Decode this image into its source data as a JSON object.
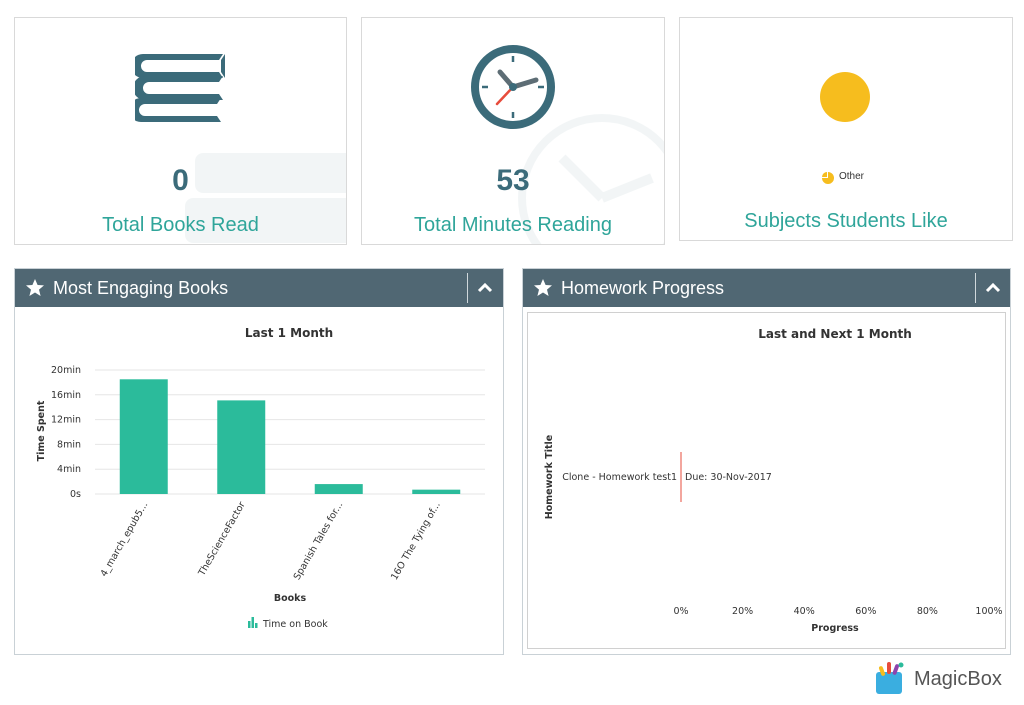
{
  "stats": [
    {
      "value": "0",
      "label": "Total Books Read",
      "icon": "books-icon"
    },
    {
      "value": "53",
      "label": "Total Minutes Reading",
      "icon": "clock-icon"
    }
  ],
  "subjects": {
    "label": "Subjects Students Like",
    "legend": "Other",
    "pie_color": "#f6bd1e"
  },
  "engaging": {
    "title": "Most Engaging Books",
    "chart_data": {
      "type": "bar",
      "title": "Last 1 Month",
      "xlabel": "Books",
      "ylabel": "Time Spent",
      "categories": [
        "4_march_epub5...",
        "TheScienceFactor",
        "Spanish Tales for...",
        "16O The Tying of..."
      ],
      "series": [
        {
          "name": "Time on Book",
          "values": [
            18.5,
            15.1,
            1.6,
            0.7
          ]
        }
      ],
      "ylim": [
        0,
        20
      ],
      "yticks": [
        "0s",
        "4min",
        "8min",
        "12min",
        "16min",
        "20min"
      ],
      "ytick_values": [
        0,
        4,
        8,
        12,
        16,
        20
      ],
      "bar_color": "#2bbb9b",
      "grid": true,
      "legend": "bottom"
    }
  },
  "homework": {
    "title": "Homework Progress",
    "chart_data": {
      "type": "bar",
      "title": "Last and Next 1 Month",
      "xlabel": "Progress",
      "ylabel": "Homework Title",
      "categories": [
        "Clone - Homework test1"
      ],
      "values": [
        0
      ],
      "annotations": [
        "Due: 30-Nov-2017"
      ],
      "xticks": [
        "0%",
        "20%",
        "40%",
        "60%",
        "80%",
        "100%"
      ],
      "xtick_values": [
        0,
        20,
        40,
        60,
        80,
        100
      ],
      "xlim": [
        0,
        100
      ],
      "marker_color": "#e74c3c"
    }
  },
  "brand": {
    "name": "MagicBox"
  },
  "colors": {
    "accent": "#2fa59a",
    "header": "#506773",
    "value": "#3b6b7a"
  }
}
